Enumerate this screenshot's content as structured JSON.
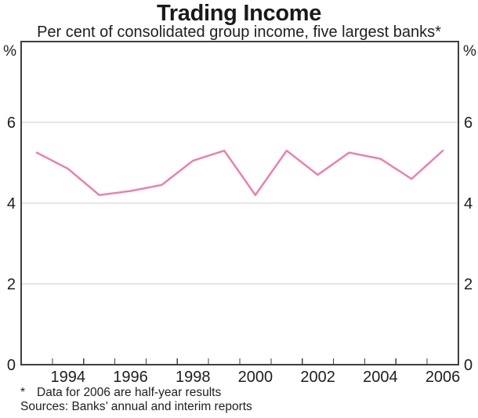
{
  "header": {
    "title": "Trading Income",
    "subtitle": "Per cent of consolidated group income, five largest banks*"
  },
  "footer": {
    "footnote_marker": "*",
    "footnote_text": "Data for 2006 are half-year results",
    "sources": "Sources: Banks’ annual and interim reports"
  },
  "chart_data": {
    "type": "line",
    "title": "Trading Income",
    "subtitle": "Per cent of consolidated group income, five largest banks*",
    "unit_label": "%",
    "x": [
      1993,
      1994,
      1995,
      1996,
      1997,
      1998,
      1999,
      2000,
      2001,
      2002,
      2003,
      2004,
      2005,
      2006
    ],
    "series": [
      {
        "name": "Trading income, per cent of consolidated group income",
        "values": [
          5.25,
          4.85,
          4.2,
          4.3,
          4.45,
          5.05,
          5.3,
          4.2,
          5.3,
          4.7,
          5.25,
          5.1,
          4.6,
          5.3
        ],
        "color": "#f07bab"
      }
    ],
    "ylim": [
      0,
      8
    ],
    "yticks": [
      0,
      2,
      4,
      6
    ],
    "ytick_labels": [
      "0",
      "2",
      "4",
      "6"
    ],
    "ytick_labels_on_both_sides": true,
    "xtick_labels": [
      "1994",
      "1996",
      "1998",
      "2000",
      "2002",
      "2004",
      "2006"
    ],
    "grid": "horizontal",
    "legend": "none",
    "grid_color": "#cdcdcd",
    "axis_color": "#3f3f3f",
    "text_color": "#1e1e1e"
  }
}
